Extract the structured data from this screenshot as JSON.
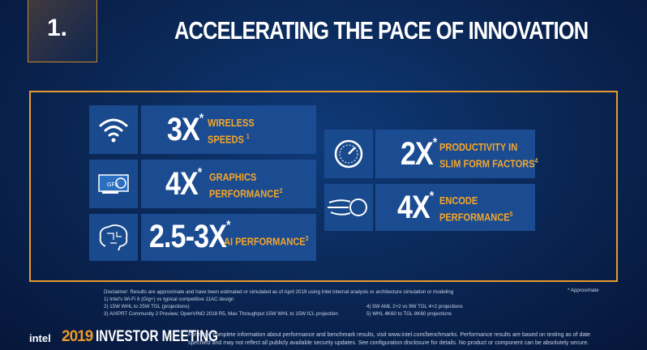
{
  "header": {
    "number": "1.",
    "title": "ACCELERATING THE PACE OF INNOVATION"
  },
  "stats": [
    {
      "value": "3X",
      "mark": "*",
      "label_lines": [
        "WIRELESS",
        "SPEEDS"
      ],
      "note": "1"
    },
    {
      "value": "4X",
      "mark": "*",
      "label_lines": [
        "GRAPHICS",
        "PERFORMANCE"
      ],
      "note": "2"
    },
    {
      "value": "2.5-3X",
      "mark": "*",
      "label_lines": [
        "AI PERFORMANCE"
      ],
      "note": "3"
    },
    {
      "value": "2X",
      "mark": "*",
      "label_lines": [
        "PRODUCTIVITY IN",
        "SLIM FORM FACTORS"
      ],
      "note": "4"
    },
    {
      "value": "4X",
      "mark": "*",
      "label_lines": [
        "ENCODE",
        "PERFORMANCE"
      ],
      "note": "5"
    }
  ],
  "disclaimer": {
    "intro": "Disclaimer: Results are approximate and have been estimated or simulated as of April 2019 using Intel internal analysis or architecture simulation or modeling",
    "notes_left": [
      "1) Intel's Wi-Fi 6 (Gig+) vs typical competitive 11AC design",
      "2) 15W WHL to 25W TGL (projections)",
      "3) AIXPRT Community 2 Preview; OpenVINO 2018 R5, Max Throughput 15W WHL to 15W ICL projection"
    ],
    "notes_right": [
      "4) 5W AML 2+2 vs 9W TGL 4+2 projections",
      "5) WHL 4K60 to TGL 8K60 projections"
    ],
    "approximate": "* Approximate"
  },
  "footer": {
    "logo": "intel",
    "year": "2019",
    "event": "INVESTOR MEETING",
    "legal": "For more complete information about performance and benchmark results, visit www.intel.com/benchmarks. Performance results are based on testing as of date specified and may not reflect all publicly available security updates. See configuration disclosure for details. No product or component can be absolutely secure."
  }
}
